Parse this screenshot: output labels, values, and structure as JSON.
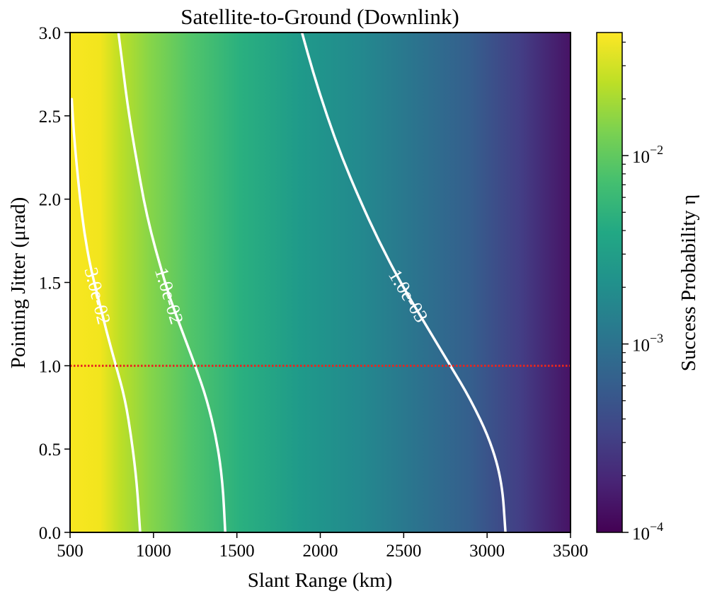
{
  "chart_data": {
    "type": "heatmap",
    "title": "Satellite-to-Ground (Downlink)",
    "xlabel": "Slant Range (km)",
    "ylabel": "Pointing Jitter (μrad)",
    "xlim": [
      500,
      3500
    ],
    "ylim": [
      0.0,
      3.0
    ],
    "x_ticks": [
      "500",
      "1000",
      "1500",
      "2000",
      "2500",
      "3000",
      "3500"
    ],
    "y_ticks": [
      "0.0",
      "0.5",
      "1.0",
      "1.5",
      "2.0",
      "2.5",
      "3.0"
    ],
    "colormap": "viridis",
    "colorbar": {
      "label": "Success Probability η",
      "scale": "log",
      "range": [
        0.0001,
        0.045
      ],
      "ticks": [
        {
          "value": 0.0001,
          "base": "10",
          "exp": "−4"
        },
        {
          "value": 0.001,
          "base": "10",
          "exp": "−3"
        },
        {
          "value": 0.01,
          "base": "10",
          "exp": "−2"
        }
      ]
    },
    "contours": [
      {
        "level": 0.03,
        "label": "3.0e-02",
        "points": [
          [
            920,
            0.0
          ],
          [
            900,
            0.3
          ],
          [
            870,
            0.55
          ],
          [
            830,
            0.8
          ],
          [
            775,
            1.0
          ],
          [
            720,
            1.2
          ],
          [
            670,
            1.4
          ],
          [
            620,
            1.6
          ],
          [
            585,
            1.8
          ],
          [
            560,
            2.0
          ],
          [
            540,
            2.2
          ],
          [
            522,
            2.4
          ],
          [
            510,
            2.6
          ]
        ]
      },
      {
        "level": 0.01,
        "label": "1.0e-02",
        "points": [
          [
            1430,
            0.0
          ],
          [
            1415,
            0.3
          ],
          [
            1380,
            0.55
          ],
          [
            1320,
            0.8
          ],
          [
            1250,
            1.0
          ],
          [
            1175,
            1.2
          ],
          [
            1100,
            1.4
          ],
          [
            1040,
            1.6
          ],
          [
            985,
            1.8
          ],
          [
            940,
            2.0
          ],
          [
            905,
            2.2
          ],
          [
            870,
            2.4
          ],
          [
            840,
            2.6
          ],
          [
            815,
            2.8
          ],
          [
            790,
            3.0
          ]
        ]
      },
      {
        "level": 0.001,
        "label": "1.0e-03",
        "points": [
          [
            3110,
            0.0
          ],
          [
            3090,
            0.3
          ],
          [
            3020,
            0.55
          ],
          [
            2900,
            0.8
          ],
          [
            2780,
            1.0
          ],
          [
            2630,
            1.25
          ],
          [
            2480,
            1.5
          ],
          [
            2350,
            1.75
          ],
          [
            2235,
            2.0
          ],
          [
            2130,
            2.25
          ],
          [
            2040,
            2.5
          ],
          [
            1960,
            2.75
          ],
          [
            1890,
            3.0
          ]
        ]
      }
    ],
    "reference_line": {
      "y": 1.0,
      "style": "dotted",
      "color": "#e8251f"
    }
  }
}
